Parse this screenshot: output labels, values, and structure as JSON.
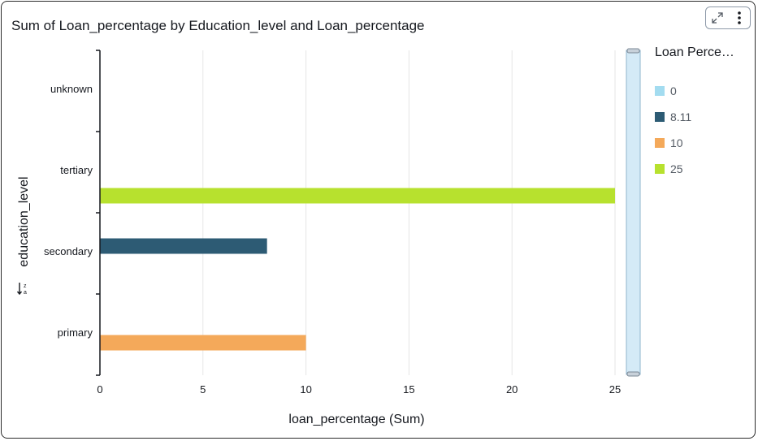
{
  "header": {
    "title": "Sum of Loan_percentage by Education_level and Loan_percentage",
    "expand_icon": "expand-icon",
    "menu_icon": "more-vertical-icon"
  },
  "legend": {
    "title": "Loan Perce…",
    "items": [
      {
        "label": "0",
        "color": "#a3dcf0"
      },
      {
        "label": "8.11",
        "color": "#2d5b74"
      },
      {
        "label": "10",
        "color": "#f4a95a"
      },
      {
        "label": "25",
        "color": "#b7e12e"
      }
    ]
  },
  "chart_data": {
    "type": "bar",
    "orientation": "horizontal",
    "title": "Sum of Loan_percentage by Education_level and Loan_percentage",
    "xlabel": "loan_percentage (Sum)",
    "ylabel": "education_level",
    "xlim": [
      0,
      25
    ],
    "xticks": [
      0,
      5,
      10,
      15,
      20,
      25
    ],
    "categories": [
      "unknown",
      "tertiary",
      "secondary",
      "primary"
    ],
    "series": [
      {
        "name": "0",
        "color": "#a3dcf0",
        "values": [
          null,
          null,
          null,
          null
        ]
      },
      {
        "name": "8.11",
        "color": "#2d5b74",
        "values": [
          null,
          null,
          8.11,
          null
        ]
      },
      {
        "name": "10",
        "color": "#f4a95a",
        "values": [
          null,
          null,
          null,
          10
        ]
      },
      {
        "name": "25",
        "color": "#b7e12e",
        "values": [
          null,
          25,
          null,
          null
        ]
      }
    ],
    "grid": true,
    "legend_position": "right"
  }
}
